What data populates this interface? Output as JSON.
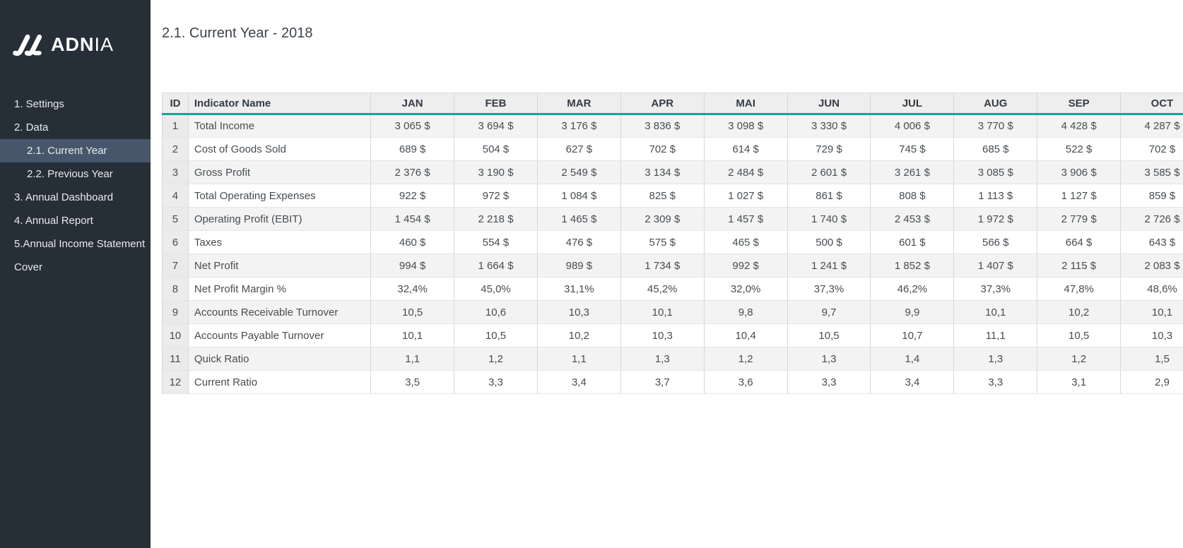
{
  "sidebar": {
    "logo": {
      "brand_bold": "ADN",
      "brand_light": "IA"
    },
    "items": [
      {
        "label": "1. Settings",
        "indent": 0,
        "active": false
      },
      {
        "label": "2. Data",
        "indent": 0,
        "active": false
      },
      {
        "label": "2.1. Current Year",
        "indent": 1,
        "active": true
      },
      {
        "label": "2.2. Previous Year",
        "indent": 1,
        "active": false
      },
      {
        "label": "3. Annual Dashboard",
        "indent": 0,
        "active": false
      },
      {
        "label": "4. Annual Report",
        "indent": 0,
        "active": false
      },
      {
        "label": "5.Annual Income Statement",
        "indent": 0,
        "active": false
      },
      {
        "label": "Cover",
        "indent": 0,
        "active": false
      }
    ]
  },
  "header": {
    "title": "2.1. Current Year - 2018"
  },
  "table": {
    "columns": [
      "ID",
      "Indicator Name",
      "JAN",
      "FEB",
      "MAR",
      "APR",
      "MAI",
      "JUN",
      "JUL",
      "AUG",
      "SEP",
      "OCT"
    ],
    "rows": [
      {
        "id": "1",
        "name": "Total Income",
        "values": [
          "3 065 $",
          "3 694 $",
          "3 176 $",
          "3 836 $",
          "3 098 $",
          "3 330 $",
          "4 006 $",
          "3 770 $",
          "4 428 $",
          "4 287 $"
        ]
      },
      {
        "id": "2",
        "name": "Cost of Goods Sold",
        "values": [
          "689 $",
          "504 $",
          "627 $",
          "702 $",
          "614 $",
          "729 $",
          "745 $",
          "685 $",
          "522 $",
          "702 $"
        ]
      },
      {
        "id": "3",
        "name": "Gross Profit",
        "values": [
          "2 376 $",
          "3 190 $",
          "2 549 $",
          "3 134 $",
          "2 484 $",
          "2 601 $",
          "3 261 $",
          "3 085 $",
          "3 906 $",
          "3 585 $"
        ]
      },
      {
        "id": "4",
        "name": "Total Operating Expenses",
        "values": [
          "922 $",
          "972 $",
          "1 084 $",
          "825 $",
          "1 027 $",
          "861 $",
          "808 $",
          "1 113 $",
          "1 127 $",
          "859 $"
        ]
      },
      {
        "id": "5",
        "name": "Operating Profit (EBIT)",
        "values": [
          "1 454 $",
          "2 218 $",
          "1 465 $",
          "2 309 $",
          "1 457 $",
          "1 740 $",
          "2 453 $",
          "1 972 $",
          "2 779 $",
          "2 726 $"
        ]
      },
      {
        "id": "6",
        "name": "Taxes",
        "values": [
          "460 $",
          "554 $",
          "476 $",
          "575 $",
          "465 $",
          "500 $",
          "601 $",
          "566 $",
          "664 $",
          "643 $"
        ]
      },
      {
        "id": "7",
        "name": "Net Profit",
        "values": [
          "994 $",
          "1 664 $",
          "989 $",
          "1 734 $",
          "992 $",
          "1 241 $",
          "1 852 $",
          "1 407 $",
          "2 115 $",
          "2 083 $"
        ]
      },
      {
        "id": "8",
        "name": "Net Profit Margin %",
        "values": [
          "32,4%",
          "45,0%",
          "31,1%",
          "45,2%",
          "32,0%",
          "37,3%",
          "46,2%",
          "37,3%",
          "47,8%",
          "48,6%"
        ]
      },
      {
        "id": "9",
        "name": "Accounts Receivable Turnover",
        "values": [
          "10,5",
          "10,6",
          "10,3",
          "10,1",
          "9,8",
          "9,7",
          "9,9",
          "10,1",
          "10,2",
          "10,1"
        ]
      },
      {
        "id": "10",
        "name": "Accounts Payable Turnover",
        "values": [
          "10,1",
          "10,5",
          "10,2",
          "10,3",
          "10,4",
          "10,5",
          "10,7",
          "11,1",
          "10,5",
          "10,3"
        ]
      },
      {
        "id": "11",
        "name": "Quick Ratio",
        "values": [
          "1,1",
          "1,2",
          "1,1",
          "1,3",
          "1,2",
          "1,3",
          "1,4",
          "1,3",
          "1,2",
          "1,5"
        ]
      },
      {
        "id": "12",
        "name": "Current Ratio",
        "values": [
          "3,5",
          "3,3",
          "3,4",
          "3,7",
          "3,6",
          "3,3",
          "3,4",
          "3,3",
          "3,1",
          "2,9"
        ]
      }
    ]
  },
  "colors": {
    "sidebar_bg": "#262e38",
    "sidebar_active_bg": "#47566a",
    "accent_teal": "#14a39c",
    "header_bg": "#eeeeee",
    "shaded_row_bg": "#f3f3f3",
    "id_column_bg": "#ececec"
  }
}
